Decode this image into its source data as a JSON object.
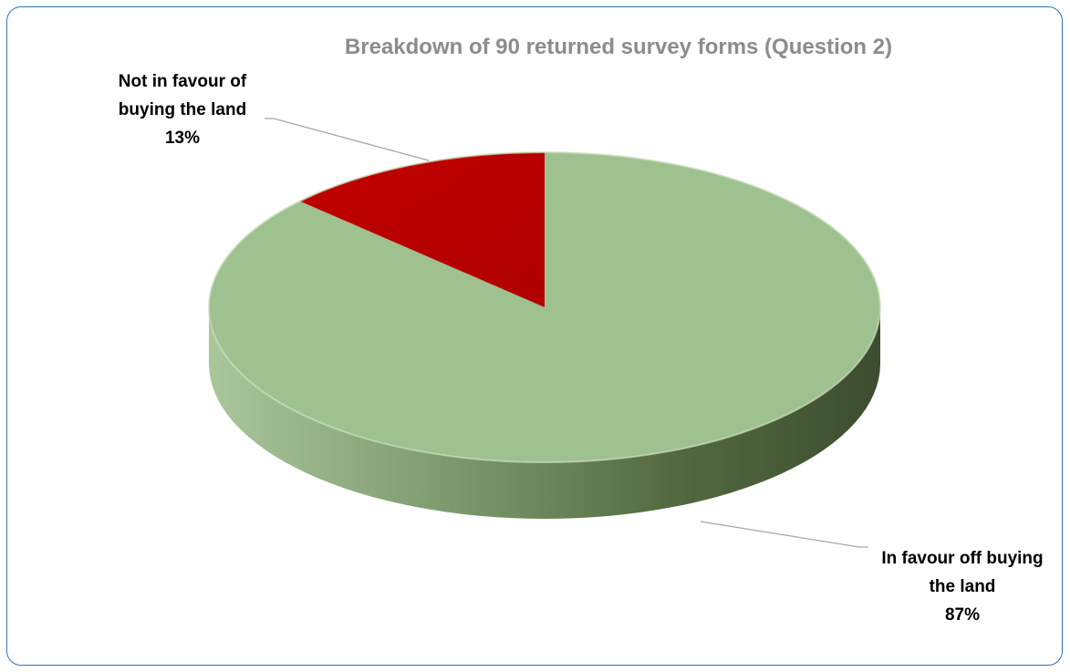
{
  "chart_data": {
    "type": "pie",
    "title": "Breakdown of 90 returned survey forms (Question 2)",
    "style": "3d",
    "slices": [
      {
        "label_lines": [
          "In favour off buying",
          "the land"
        ],
        "percent_label": "87%",
        "value": 87,
        "color": "#9fc08f"
      },
      {
        "label_lines": [
          "Not in favour of",
          "buying the land"
        ],
        "percent_label": "13%",
        "value": 13,
        "color": "#c00000"
      }
    ],
    "leader_line_color": "#a6a6a6",
    "border_color": "#2e75b6"
  }
}
